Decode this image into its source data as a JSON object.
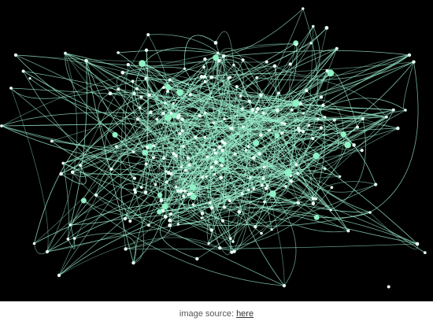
{
  "caption": {
    "prefix": "image source: ",
    "link_text": "here"
  },
  "colors": {
    "background": "#000000",
    "edge": "#9ff5d3",
    "node_large": "#8ff2c5",
    "node_small": "#e8fff5"
  }
}
